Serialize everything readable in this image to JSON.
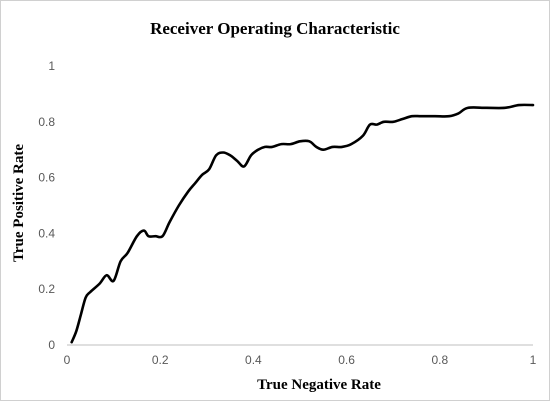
{
  "chart_data": {
    "type": "line",
    "title": "Receiver Operating Characteristic",
    "xlabel": "True Negative Rate",
    "ylabel": "True Positive Rate",
    "xlim": [
      0,
      1
    ],
    "ylim": [
      0,
      1
    ],
    "x_ticks": [
      "0",
      "0.2",
      "0.4",
      "0.6",
      "0.8",
      "1"
    ],
    "y_ticks": [
      "0",
      "0.2",
      "0.4",
      "0.6",
      "0.8",
      "1"
    ],
    "grid": false,
    "legend": "none",
    "line_color": "#000000",
    "series": [
      {
        "x": [
          0.01,
          0.02,
          0.03,
          0.04,
          0.05,
          0.07,
          0.085,
          0.1,
          0.115,
          0.13,
          0.15,
          0.165,
          0.175,
          0.19,
          0.205,
          0.22,
          0.24,
          0.26,
          0.275,
          0.29,
          0.305,
          0.32,
          0.335,
          0.35,
          0.365,
          0.38,
          0.395,
          0.41,
          0.425,
          0.44,
          0.46,
          0.48,
          0.5,
          0.52,
          0.535,
          0.55,
          0.57,
          0.59,
          0.61,
          0.635,
          0.65,
          0.665,
          0.68,
          0.7,
          0.72,
          0.74,
          0.76,
          0.79,
          0.82,
          0.84,
          0.86,
          0.9,
          0.94,
          0.97,
          1.0
        ],
        "y": [
          0.01,
          0.05,
          0.11,
          0.17,
          0.19,
          0.22,
          0.25,
          0.23,
          0.3,
          0.33,
          0.39,
          0.41,
          0.39,
          0.39,
          0.39,
          0.44,
          0.5,
          0.55,
          0.58,
          0.61,
          0.63,
          0.68,
          0.69,
          0.68,
          0.66,
          0.64,
          0.68,
          0.7,
          0.71,
          0.71,
          0.72,
          0.72,
          0.73,
          0.73,
          0.71,
          0.7,
          0.71,
          0.71,
          0.72,
          0.75,
          0.79,
          0.79,
          0.8,
          0.8,
          0.81,
          0.82,
          0.82,
          0.82,
          0.82,
          0.83,
          0.85,
          0.85,
          0.85,
          0.86,
          0.86
        ]
      }
    ]
  }
}
